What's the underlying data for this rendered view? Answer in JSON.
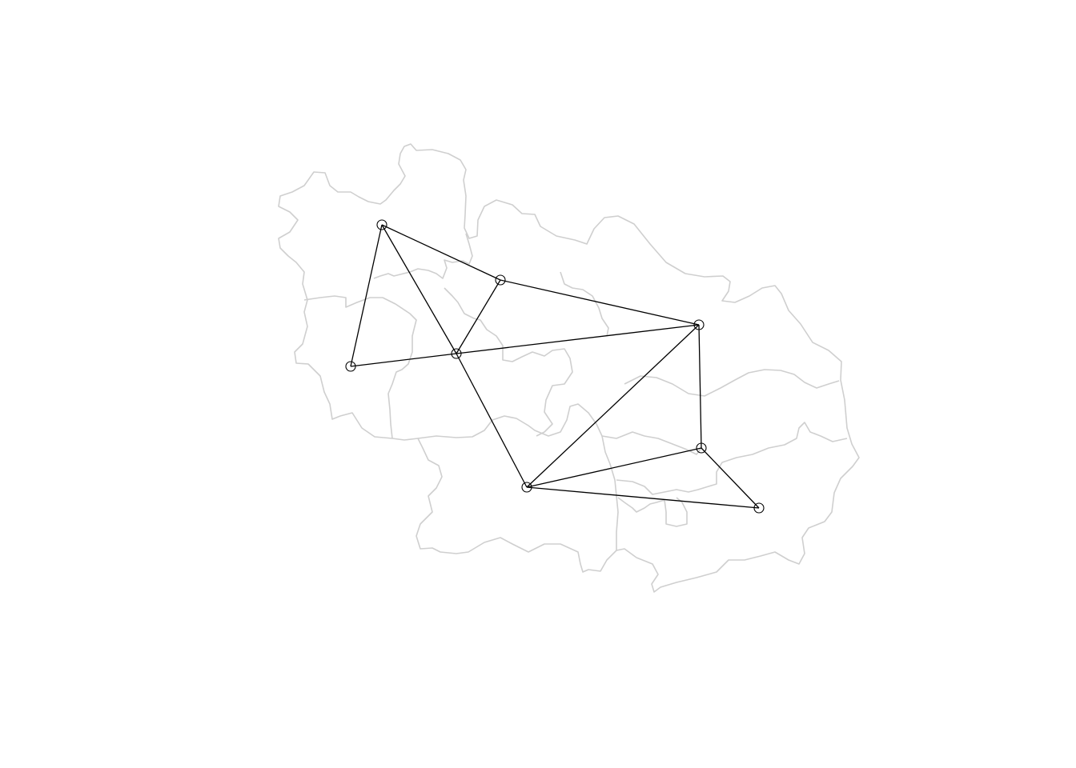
{
  "map": {
    "type": "neighbour-network",
    "colors": {
      "boundary": "#cfcfcf",
      "network": "#000000",
      "background": "#ffffff"
    },
    "node_count": 8,
    "edge_count": 13
  }
}
